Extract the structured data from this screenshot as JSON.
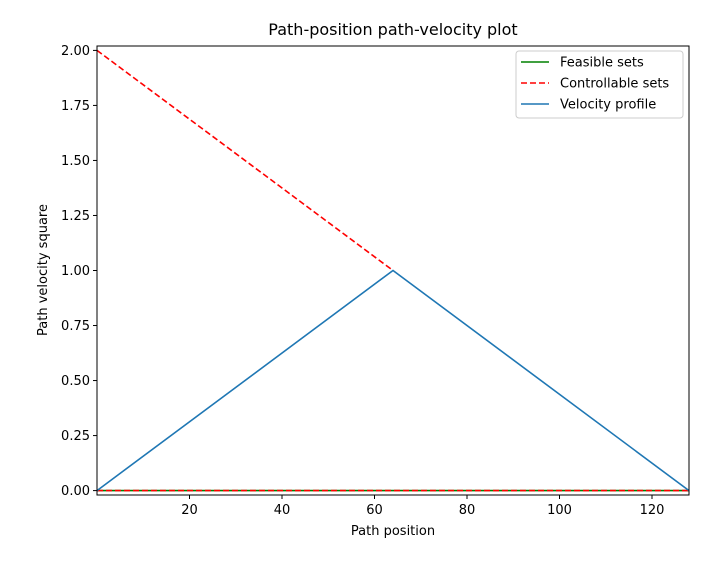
{
  "chart_data": {
    "type": "line",
    "title": "Path-position path-velocity plot",
    "xlabel": "Path position",
    "ylabel": "Path velocity square",
    "xlim": [
      0,
      128
    ],
    "ylim": [
      -0.02,
      2.02
    ],
    "xticks": [
      20,
      40,
      60,
      80,
      100,
      120
    ],
    "xtick_labels": [
      "20",
      "40",
      "60",
      "80",
      "100",
      "120"
    ],
    "yticks": [
      0,
      0.25,
      0.5,
      0.75,
      1.0,
      1.25,
      1.5,
      1.75,
      2.0
    ],
    "ytick_labels": [
      "0.00",
      "0.25",
      "0.50",
      "0.75",
      "1.00",
      "1.25",
      "1.50",
      "1.75",
      "2.00"
    ],
    "grid": false,
    "legend_position": "top-right",
    "series": [
      {
        "name": "Feasible sets",
        "color": "#008000",
        "style": "solid",
        "lines": [
          {
            "x": [
              0,
              128
            ],
            "y": [
              0,
              0
            ]
          }
        ]
      },
      {
        "name": "Controllable sets",
        "color": "#ff0000",
        "style": "dashed",
        "lines": [
          {
            "x": [
              0,
              64
            ],
            "y": [
              2.0,
              1.0
            ]
          },
          {
            "x": [
              0,
              128
            ],
            "y": [
              0,
              0
            ]
          }
        ]
      },
      {
        "name": "Velocity profile",
        "color": "#1f77b4",
        "style": "solid",
        "lines": [
          {
            "x": [
              0,
              64,
              128
            ],
            "y": [
              0,
              1.0,
              0
            ]
          }
        ]
      }
    ]
  }
}
